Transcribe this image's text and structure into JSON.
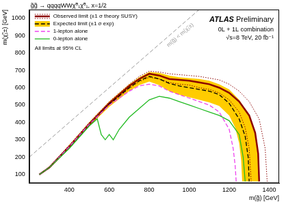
{
  "chart_data": {
    "type": "line",
    "title": "g̃g̃ → qqqqWWχ̃⁰₁χ̃⁰₁, x=1/2",
    "x_label": "m(g̃) [GeV]",
    "y_label": "m(χ̃₁±) [GeV]",
    "xlim": [
      200,
      1450
    ],
    "xticks": [
      400,
      600,
      800,
      1000,
      1200,
      1400
    ],
    "ylim": [
      50,
      1050
    ],
    "yticks": [
      100,
      200,
      300,
      400,
      500,
      600,
      700,
      800,
      900,
      1000
    ],
    "grid": false,
    "legend": "upper left",
    "annotations": {
      "experiment": "ATLAS",
      "status": "Preliminary",
      "lines": [
        "0L + 1L combination",
        "√s=8 TeV, 20 fb⁻¹"
      ],
      "note": "All limits at 95% CL"
    },
    "diagonal": {
      "label": "m(g̃) < m(χ̃₁±)",
      "color": "#999999",
      "line_style": "dashed",
      "x": [
        200,
        1050
      ],
      "values": [
        200,
        1050
      ]
    },
    "series": [
      {
        "name": "Observed limit (±1 σ theory SUSY)",
        "color": "#8b0000",
        "line_style": "solid",
        "x": [
          250,
          300,
          400,
          500,
          600,
          700,
          750,
          800,
          850,
          900,
          950,
          1000,
          1050,
          1100,
          1150,
          1200,
          1250,
          1300,
          1330,
          1345,
          1350
        ],
        "values": [
          100,
          140,
          260,
          390,
          510,
          610,
          650,
          680,
          670,
          650,
          645,
          640,
          630,
          620,
          600,
          570,
          520,
          440,
          340,
          220,
          60
        ],
        "band_up": {
          "x": [
            250,
            300,
            400,
            500,
            600,
            700,
            750,
            800,
            850,
            900,
            950,
            1000,
            1050,
            1100,
            1150,
            1200,
            1250,
            1300,
            1350,
            1380,
            1390
          ],
          "values": [
            100,
            145,
            270,
            400,
            520,
            620,
            665,
            695,
            690,
            680,
            675,
            670,
            665,
            655,
            645,
            620,
            580,
            520,
            420,
            250,
            60
          ]
        },
        "band_down": {
          "x": [
            250,
            300,
            400,
            500,
            600,
            700,
            750,
            800,
            850,
            900,
            950,
            1000,
            1050,
            1100,
            1150,
            1200,
            1250,
            1280,
            1300,
            1310
          ],
          "values": [
            100,
            135,
            250,
            380,
            500,
            595,
            635,
            660,
            650,
            630,
            620,
            615,
            600,
            590,
            570,
            530,
            460,
            370,
            250,
            60
          ]
        }
      },
      {
        "name": "Expected limit (±1 σ exp)",
        "color": "#000000",
        "line_style": "dashed",
        "x": [
          250,
          300,
          400,
          500,
          600,
          700,
          750,
          800,
          850,
          900,
          950,
          1000,
          1050,
          1100,
          1150,
          1200,
          1250,
          1280,
          1295,
          1300
        ],
        "values": [
          100,
          140,
          260,
          390,
          505,
          600,
          640,
          665,
          650,
          625,
          610,
          600,
          590,
          580,
          560,
          510,
          420,
          320,
          200,
          60
        ],
        "band_up": {
          "x": [
            250,
            300,
            400,
            500,
            600,
            700,
            750,
            800,
            850,
            900,
            950,
            1000,
            1050,
            1100,
            1150,
            1200,
            1250,
            1300,
            1330,
            1345,
            1350
          ],
          "values": [
            100,
            145,
            270,
            400,
            520,
            620,
            660,
            690,
            685,
            670,
            660,
            655,
            650,
            640,
            620,
            590,
            530,
            440,
            330,
            200,
            60
          ]
        },
        "band_down": {
          "x": [
            250,
            300,
            400,
            500,
            600,
            700,
            750,
            800,
            850,
            900,
            950,
            1000,
            1050,
            1100,
            1150,
            1200,
            1230,
            1250,
            1260,
            1265
          ],
          "values": [
            100,
            135,
            250,
            380,
            490,
            580,
            615,
            635,
            615,
            580,
            560,
            545,
            530,
            515,
            495,
            440,
            370,
            280,
            180,
            60
          ]
        }
      },
      {
        "name": "1-lepton alone",
        "color": "#ee44ee",
        "line_style": "dashed",
        "x": [
          250,
          300,
          400,
          500,
          600,
          700,
          750,
          800,
          850,
          900,
          950,
          1000,
          1050,
          1100,
          1150,
          1200,
          1220,
          1230,
          1235
        ],
        "values": [
          100,
          140,
          260,
          390,
          500,
          580,
          610,
          620,
          610,
          580,
          560,
          540,
          520,
          500,
          460,
          360,
          250,
          150,
          60
        ]
      },
      {
        "name": "0-lepton alone",
        "color": "#22bb22",
        "line_style": "solid",
        "x": [
          250,
          300,
          400,
          500,
          540,
          560,
          580,
          600,
          620,
          650,
          700,
          750,
          800,
          850,
          900,
          950,
          1000,
          1050,
          1100,
          1150,
          1200,
          1250,
          1270,
          1280
        ],
        "values": [
          100,
          140,
          250,
          380,
          420,
          330,
          300,
          330,
          300,
          360,
          430,
          480,
          530,
          550,
          540,
          520,
          500,
          480,
          460,
          440,
          410,
          330,
          200,
          60
        ]
      }
    ]
  }
}
